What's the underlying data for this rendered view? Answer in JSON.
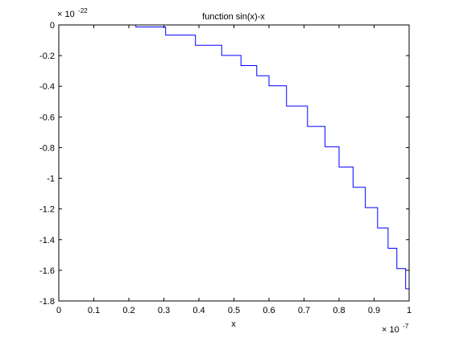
{
  "chart_data": {
    "type": "line",
    "title": "function sin(x)-x",
    "xlabel": "x",
    "ylabel": "",
    "x_multiplier": {
      "base": "× 10",
      "exponent": "-7"
    },
    "y_multiplier": {
      "base": "× 10",
      "exponent": "-22"
    },
    "xlim": [
      0,
      1
    ],
    "ylim": [
      -1.8,
      0
    ],
    "x_ticks": [
      0,
      0.1,
      0.2,
      0.3,
      0.4,
      0.5,
      0.6,
      0.7,
      0.8,
      0.9,
      1
    ],
    "x_tick_labels": [
      "0",
      "0.1",
      "0.2",
      "0.3",
      "0.4",
      "0.5",
      "0.6",
      "0.7",
      "0.8",
      "0.9",
      "1"
    ],
    "y_ticks": [
      0,
      -0.2,
      -0.4,
      -0.6,
      -0.8,
      -1,
      -1.2,
      -1.4,
      -1.6,
      -1.8
    ],
    "y_tick_labels": [
      "0",
      "-0.2",
      "-0.4",
      "-0.6",
      "-0.8",
      "-1",
      "-1.2",
      "-1.4",
      "-1.6",
      "-1.8"
    ],
    "grid": false,
    "line_color": "#0000ff",
    "series": [
      {
        "step": true,
        "x": [
          0.205,
          0.22,
          0.305,
          0.39,
          0.465,
          0.52,
          0.565,
          0.6,
          0.65,
          0.71,
          0.76,
          0.8,
          0.84,
          0.875,
          0.91,
          0.94,
          0.965,
          0.99,
          1.0
        ],
        "y": [
          0,
          -0.0132,
          -0.0662,
          -0.1324,
          -0.1986,
          -0.2648,
          -0.331,
          -0.3971,
          -0.5295,
          -0.6619,
          -0.7943,
          -0.9266,
          -1.059,
          -1.1914,
          -1.3238,
          -1.4561,
          -1.5885,
          -1.7209,
          -1.7209
        ]
      }
    ]
  }
}
